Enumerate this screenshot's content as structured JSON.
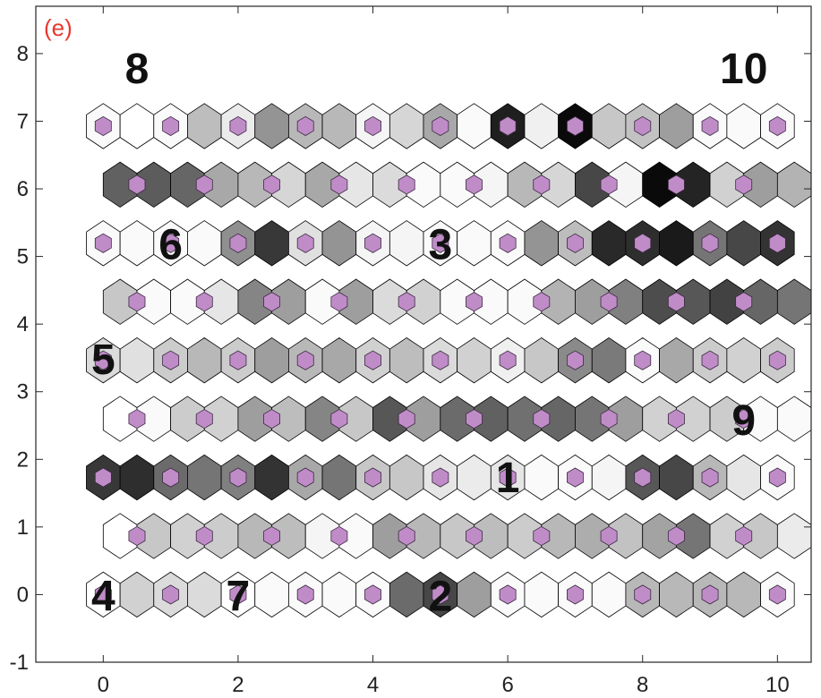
{
  "chart_data": {
    "type": "heatmap",
    "subtype": "som-hexagonal-u-matrix",
    "panel_label": "(e)",
    "panel_label_color": "#e8392f",
    "xlim": [
      -1,
      10.5
    ],
    "ylim": [
      -1,
      8.7
    ],
    "xticks": [
      0,
      2,
      4,
      6,
      8,
      10
    ],
    "yticks": [
      -1,
      0,
      1,
      2,
      3,
      4,
      5,
      6,
      7,
      8
    ],
    "grid": false,
    "neuron_color": "#c08cc8",
    "neuron_stroke": "#3a2a40",
    "cell_stroke": "#000000",
    "colormap": "gray (0 = black, 1 = white)",
    "grid_size": {
      "cols": 11,
      "rows": 9,
      "hex_cols_per_unit": 2
    },
    "cell_values": [
      [
        1.0,
        0.82,
        0.86,
        0.86,
        1.0,
        0.98,
        0.98,
        0.98,
        0.98,
        0.42,
        0.28,
        0.62,
        0.98,
        0.98,
        0.98,
        0.98,
        0.72,
        0.72,
        0.72,
        0.72,
        0.98
      ],
      [
        1.0,
        0.78,
        0.82,
        0.8,
        0.72,
        0.74,
        0.96,
        0.98,
        0.62,
        0.72,
        0.78,
        0.74,
        0.8,
        0.72,
        0.68,
        0.76,
        0.64,
        0.46,
        0.82,
        0.78,
        0.92
      ],
      [
        0.22,
        0.18,
        0.42,
        0.46,
        0.5,
        0.2,
        0.66,
        0.46,
        0.78,
        0.78,
        0.9,
        0.92,
        0.9,
        0.98,
        0.98,
        0.96,
        0.34,
        0.28,
        0.72,
        0.9,
        0.98
      ],
      [
        1.0,
        0.98,
        0.8,
        0.82,
        0.62,
        0.74,
        0.52,
        0.78,
        0.34,
        0.62,
        0.42,
        0.38,
        0.44,
        0.4,
        0.46,
        0.62,
        0.82,
        0.82,
        0.8,
        0.98,
        0.98
      ],
      [
        0.86,
        0.88,
        0.8,
        0.72,
        0.8,
        0.62,
        0.72,
        0.66,
        0.82,
        0.74,
        0.86,
        0.82,
        0.94,
        0.78,
        0.54,
        0.48,
        0.98,
        0.66,
        0.8,
        0.82,
        0.8
      ],
      [
        0.78,
        0.98,
        0.98,
        0.9,
        0.52,
        0.62,
        0.98,
        0.62,
        0.86,
        0.82,
        0.98,
        0.98,
        0.98,
        0.7,
        0.62,
        0.5,
        0.3,
        0.34,
        0.26,
        0.4,
        0.46
      ],
      [
        0.98,
        0.98,
        0.98,
        0.98,
        0.56,
        0.22,
        0.88,
        0.58,
        0.96,
        0.96,
        0.98,
        0.98,
        0.98,
        0.58,
        0.74,
        0.16,
        0.18,
        0.1,
        0.46,
        0.28,
        0.2
      ],
      [
        0.38,
        0.36,
        0.4,
        0.66,
        0.72,
        0.84,
        0.66,
        0.9,
        0.86,
        0.98,
        0.98,
        0.96,
        0.72,
        0.84,
        0.28,
        0.96,
        0.04,
        0.14,
        0.82,
        0.62,
        0.7
      ],
      [
        0.98,
        1.0,
        0.98,
        0.74,
        0.92,
        0.58,
        0.72,
        0.72,
        0.96,
        0.84,
        0.66,
        0.98,
        0.12,
        0.94,
        0.04,
        0.78,
        0.76,
        0.62,
        0.98,
        0.98,
        0.98
      ]
    ],
    "cluster_labels": [
      {
        "text": "8",
        "x": 0.5,
        "y": 7.8
      },
      {
        "text": "10",
        "x": 9.5,
        "y": 7.8
      },
      {
        "text": "6",
        "x": 1.0,
        "y": 5.2
      },
      {
        "text": "3",
        "x": 5.0,
        "y": 5.2
      },
      {
        "text": "5",
        "x": 0.0,
        "y": 3.5
      },
      {
        "text": "9",
        "x": 9.5,
        "y": 2.6
      },
      {
        "text": "1",
        "x": 6.0,
        "y": 1.75
      },
      {
        "text": "4",
        "x": 0.0,
        "y": 0.0
      },
      {
        "text": "7",
        "x": 2.0,
        "y": 0.0
      },
      {
        "text": "2",
        "x": 5.0,
        "y": 0.0
      }
    ]
  }
}
